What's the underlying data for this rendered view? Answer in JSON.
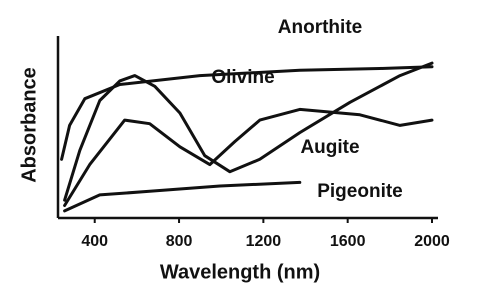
{
  "chart_data": {
    "type": "line",
    "x_label": "Wavelength (nm)",
    "y_label": "Absorbance",
    "xlim": [
      240,
      2000
    ],
    "xticks": [
      400,
      800,
      1200,
      1600,
      2000
    ],
    "ylim": [
      0,
      1
    ],
    "series": [
      {
        "name": "Anorthite",
        "color": "#111111",
        "x": [
          243,
          281,
          353,
          519,
          899,
          1373,
          1753,
          2000
        ],
        "values": [
          0.33,
          0.52,
          0.67,
          0.75,
          0.8,
          0.83,
          0.84,
          0.85
        ]
      },
      {
        "name": "Olivine",
        "color": "#111111",
        "x": [
          257,
          329,
          424,
          519,
          590,
          685,
          804,
          922,
          1041,
          1183,
          1373,
          1611,
          1848,
          2000
        ],
        "values": [
          0.1,
          0.38,
          0.66,
          0.77,
          0.8,
          0.74,
          0.59,
          0.35,
          0.26,
          0.33,
          0.48,
          0.65,
          0.8,
          0.87
        ]
      },
      {
        "name": "Augite",
        "color": "#111111",
        "x": [
          257,
          376,
          542,
          661,
          804,
          946,
          1065,
          1183,
          1373,
          1658,
          1848,
          2000
        ],
        "values": [
          0.07,
          0.3,
          0.55,
          0.53,
          0.4,
          0.3,
          0.43,
          0.55,
          0.61,
          0.58,
          0.52,
          0.55
        ]
      },
      {
        "name": "Pigeonite",
        "color": "#111111",
        "x": [
          257,
          424,
          661,
          994,
          1373
        ],
        "values": [
          0.04,
          0.13,
          0.15,
          0.18,
          0.2
        ]
      }
    ]
  }
}
